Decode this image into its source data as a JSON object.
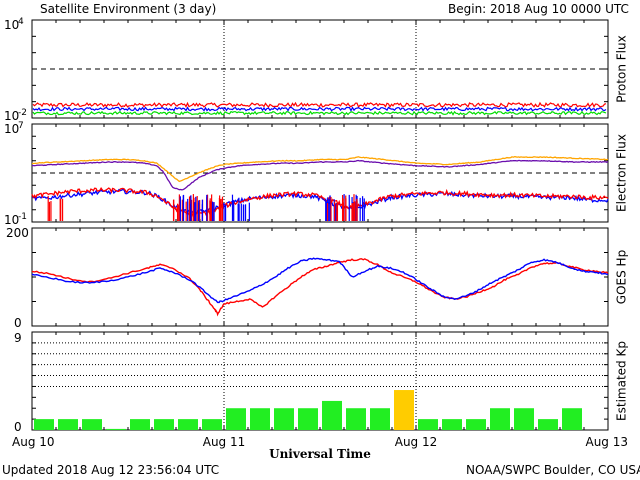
{
  "header": {
    "title": "Satellite Environment (3 day)",
    "begin": "Begin:  2018 Aug 10 0000 UTC"
  },
  "footer": {
    "updated": "Updated 2018 Aug 12 23:56:04 UTC",
    "credit": "NOAA/SWPC Boulder, CO USA"
  },
  "colors": {
    "red": "#ff0000",
    "blue": "#0000ff",
    "green": "#00dd00",
    "orange": "#ffa500",
    "purple": "#6a0dad",
    "kp_green": "#22ee22",
    "kp_yellow": "#ffcc00"
  },
  "chart_data": [
    {
      "type": "line",
      "panel": "proton",
      "ylabel": "Proton Flux",
      "yscale": "log",
      "ylim_exp": [
        -2,
        4
      ],
      "ytick_labels": [
        {
          "base": "10",
          "exp": "4",
          "value_exp": 4
        },
        {
          "base": "10",
          "exp": "-2",
          "value_exp": -2
        }
      ],
      "threshold_exp": 1,
      "series": [
        {
          "color_key": "red",
          "level_exp": -1.2,
          "noise": 0.12
        },
        {
          "color_key": "blue",
          "level_exp": -1.45,
          "noise": 0.1
        },
        {
          "color_key": "green",
          "level_exp": -1.7,
          "noise": 0.09
        }
      ]
    },
    {
      "type": "line",
      "panel": "electron",
      "ylabel": "Electron Flux",
      "yscale": "log",
      "ylim_exp": [
        -1,
        7
      ],
      "ytick_labels": [
        {
          "base": "10",
          "exp": "7",
          "value_exp": 7
        },
        {
          "base": "10",
          "exp": "-1",
          "value_exp": -1
        }
      ],
      "threshold_exp": 3,
      "series": [
        {
          "color_key": "orange",
          "x": [
            0,
            0.4,
            0.8,
            1.2,
            1.5,
            1.75,
            1.95,
            2.05,
            2.3,
            2.6,
            2.85,
            3.0,
            3.25,
            3.5,
            3.9,
            4.2,
            4.5,
            4.9,
            5.1,
            5.5,
            6.0,
            6.5,
            7.0,
            7.5,
            8.0,
            8.5,
            9.0
          ],
          "y": [
            3.8,
            3.9,
            4.0,
            4.1,
            4.1,
            4.0,
            3.8,
            3.4,
            2.3,
            3.0,
            3.5,
            3.7,
            3.8,
            3.9,
            4.0,
            4.0,
            4.1,
            4.1,
            4.3,
            4.1,
            3.8,
            3.7,
            3.9,
            4.3,
            4.3,
            4.2,
            4.1
          ]
        },
        {
          "color_key": "purple",
          "x": [
            0,
            0.4,
            0.8,
            1.2,
            1.5,
            1.75,
            1.95,
            2.05,
            2.2,
            2.35,
            2.6,
            2.85,
            3.0,
            3.25,
            3.5,
            3.9,
            4.2,
            4.5,
            4.9,
            5.1,
            5.5,
            6.0,
            6.5,
            7.0,
            7.5,
            8.0,
            8.5,
            9.0
          ],
          "y": [
            3.6,
            3.7,
            3.8,
            3.9,
            3.9,
            3.8,
            3.6,
            3.1,
            1.8,
            1.6,
            2.6,
            3.2,
            3.4,
            3.6,
            3.7,
            3.8,
            3.8,
            3.9,
            3.9,
            4.0,
            3.8,
            3.6,
            3.5,
            3.7,
            4.0,
            4.0,
            3.9,
            3.9
          ]
        },
        {
          "color_key": "blue",
          "x": [
            0,
            0.3,
            0.6,
            1.0,
            1.4,
            1.8,
            2.0,
            2.2,
            2.5,
            2.8,
            3.0,
            3.4,
            3.8,
            4.1,
            4.4,
            4.7,
            5.0,
            5.3,
            5.6,
            6.0,
            6.4,
            6.8,
            7.2,
            7.6,
            8.0,
            8.4,
            8.7,
            9.0
          ],
          "y": [
            0.9,
            1.0,
            1.2,
            1.4,
            1.5,
            1.4,
            1.0,
            0.3,
            -0.3,
            0.0,
            0.4,
            0.9,
            1.1,
            1.2,
            1.1,
            0.5,
            0.0,
            0.5,
            1.0,
            1.2,
            1.3,
            1.2,
            1.1,
            1.1,
            1.0,
            1.0,
            0.8,
            0.8
          ]
        },
        {
          "color_key": "red",
          "x": [
            0,
            0.3,
            0.6,
            1.0,
            1.4,
            1.8,
            2.0,
            2.2,
            2.5,
            2.8,
            3.0,
            3.4,
            3.8,
            4.1,
            4.4,
            4.7,
            5.0,
            5.3,
            5.6,
            6.0,
            6.4,
            6.8,
            7.2,
            7.6,
            8.0,
            8.4,
            8.7,
            9.0
          ],
          "y": [
            1.1,
            1.3,
            1.5,
            1.6,
            1.6,
            1.4,
            1.0,
            0.2,
            -0.4,
            -0.2,
            0.3,
            0.9,
            1.2,
            1.3,
            1.2,
            0.7,
            0.1,
            0.6,
            1.1,
            1.3,
            1.4,
            1.3,
            1.2,
            1.2,
            1.1,
            1.1,
            1.0,
            1.0
          ]
        }
      ],
      "dropouts": [
        {
          "color_key": "red",
          "from": 0.25,
          "to": 0.5,
          "count": 6
        },
        {
          "color_key": "red",
          "from": 2.2,
          "to": 3.0,
          "count": 30
        },
        {
          "color_key": "blue",
          "from": 2.3,
          "to": 3.4,
          "count": 28
        },
        {
          "color_key": "blue",
          "from": 4.5,
          "to": 5.2,
          "count": 22
        },
        {
          "color_key": "red",
          "from": 4.6,
          "to": 5.1,
          "count": 18
        }
      ]
    },
    {
      "type": "line",
      "panel": "hp",
      "ylabel": "GOES Hp",
      "ylim": [
        0,
        200
      ],
      "ytick_labels": [
        {
          "text": "200",
          "value": 200
        },
        {
          "text": "0",
          "value": 0
        }
      ],
      "series": [
        {
          "color_key": "red",
          "x": [
            0,
            0.3,
            0.6,
            0.9,
            1.2,
            1.5,
            1.8,
            2.0,
            2.2,
            2.45,
            2.6,
            2.75,
            2.85,
            2.9,
            3.0,
            3.2,
            3.4,
            3.6,
            3.8,
            4.0,
            4.2,
            4.4,
            4.6,
            4.8,
            5.0,
            5.2,
            5.4,
            5.6,
            5.8,
            6.0,
            6.2,
            6.4,
            6.6,
            6.8,
            7.0,
            7.2,
            7.4,
            7.6,
            7.8,
            8.0,
            8.2,
            8.4,
            8.6,
            8.8,
            9.0
          ],
          "y": [
            112,
            106,
            96,
            90,
            97,
            108,
            118,
            125,
            118,
            98,
            78,
            52,
            35,
            25,
            45,
            50,
            55,
            38,
            60,
            80,
            100,
            115,
            122,
            130,
            135,
            136,
            125,
            110,
            100,
            90,
            75,
            60,
            55,
            60,
            70,
            80,
            95,
            105,
            120,
            128,
            128,
            122,
            115,
            112,
            108
          ]
        },
        {
          "color_key": "blue",
          "x": [
            0,
            0.3,
            0.6,
            0.9,
            1.2,
            1.5,
            1.8,
            2.0,
            2.2,
            2.5,
            2.7,
            2.9,
            3.0,
            3.2,
            3.4,
            3.6,
            3.8,
            4.0,
            4.2,
            4.4,
            4.6,
            4.8,
            5.0,
            5.2,
            5.4,
            5.6,
            5.8,
            6.0,
            6.2,
            6.4,
            6.6,
            6.8,
            7.0,
            7.2,
            7.4,
            7.6,
            7.8,
            8.0,
            8.2,
            8.4,
            8.6,
            8.8,
            9.0
          ],
          "y": [
            105,
            98,
            90,
            88,
            92,
            100,
            110,
            118,
            110,
            92,
            70,
            48,
            52,
            62,
            72,
            85,
            100,
            118,
            132,
            138,
            135,
            132,
            100,
            112,
            122,
            118,
            110,
            95,
            78,
            62,
            55,
            62,
            75,
            90,
            102,
            115,
            130,
            135,
            130,
            120,
            112,
            110,
            105
          ]
        }
      ]
    },
    {
      "type": "bar",
      "panel": "kp",
      "ylabel": "Estimated Kp",
      "ylim": [
        0,
        9
      ],
      "ytick_labels": [
        {
          "text": "9",
          "value": 9
        },
        {
          "text": "0",
          "value": 0
        }
      ],
      "gridlines": [
        4,
        5,
        6,
        7,
        8
      ],
      "values": [
        1,
        1,
        1,
        0.1,
        1,
        1,
        1,
        1,
        2,
        2,
        2,
        2,
        2.67,
        2,
        2,
        3.67,
        1,
        1,
        1,
        2,
        2,
        1,
        2
      ],
      "highlight_threshold": 3.5
    }
  ],
  "xaxis": {
    "title": "Universal Time",
    "labels": [
      "Aug 10",
      "Aug 11",
      "Aug 12",
      "Aug 13"
    ],
    "values_days": [
      0,
      1,
      2,
      3
    ]
  }
}
